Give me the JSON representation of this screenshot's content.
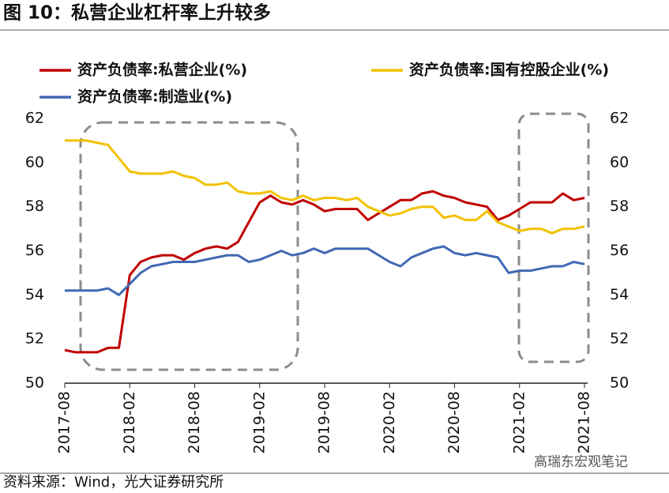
{
  "chart_data": {
    "type": "line",
    "title": "图 10：私营企业杠杆率上升较多",
    "source": "资料来源：Wind，光大证券研究所",
    "watermark": "高瑞东宏观笔记",
    "categories": [
      "2017-08",
      null,
      null,
      null,
      null,
      null,
      "2018-02",
      null,
      null,
      null,
      null,
      null,
      "2018-08",
      null,
      null,
      null,
      null,
      null,
      "2019-02",
      null,
      null,
      null,
      null,
      null,
      "2019-08",
      null,
      null,
      null,
      null,
      null,
      "2020-02",
      null,
      null,
      null,
      null,
      null,
      "2020-08",
      null,
      null,
      null,
      null,
      null,
      "2021-02",
      null,
      null,
      null,
      null,
      null,
      "2021-08"
    ],
    "series": [
      {
        "name": "资产负债率:私营企业(%)",
        "color": "#c00000",
        "values": [
          51.5,
          51.4,
          51.4,
          51.4,
          51.6,
          51.6,
          54.9,
          55.5,
          55.7,
          55.8,
          55.8,
          55.6,
          55.9,
          56.1,
          56.2,
          56.1,
          56.4,
          57.3,
          58.2,
          58.5,
          58.2,
          58.1,
          58.3,
          58.1,
          57.8,
          57.9,
          57.9,
          57.9,
          57.4,
          57.7,
          58.0,
          58.3,
          58.3,
          58.6,
          58.7,
          58.5,
          58.4,
          58.2,
          58.1,
          58.0,
          57.4,
          57.6,
          57.9,
          58.2,
          58.2,
          58.2,
          58.6,
          58.3,
          58.4
        ]
      },
      {
        "name": "资产负债率:国有控股企业(%)",
        "color": "#f2c200",
        "values": [
          61.0,
          61.0,
          61.0,
          60.9,
          60.8,
          60.2,
          59.6,
          59.5,
          59.5,
          59.5,
          59.6,
          59.4,
          59.3,
          59.0,
          59.0,
          59.1,
          58.7,
          58.6,
          58.6,
          58.7,
          58.4,
          58.3,
          58.5,
          58.3,
          58.4,
          58.4,
          58.3,
          58.4,
          58.0,
          57.8,
          57.6,
          57.7,
          57.9,
          58.0,
          58.0,
          57.5,
          57.6,
          57.4,
          57.4,
          57.8,
          57.3,
          57.1,
          56.9,
          57.0,
          57.0,
          56.8,
          57.0,
          57.0,
          57.1
        ]
      },
      {
        "name": "资产负债率:制造业(%)",
        "color": "#4169b4",
        "values": [
          54.2,
          54.2,
          54.2,
          54.2,
          54.3,
          54.0,
          54.5,
          55.0,
          55.3,
          55.4,
          55.5,
          55.5,
          55.5,
          55.6,
          55.7,
          55.8,
          55.8,
          55.5,
          55.6,
          55.8,
          56.0,
          55.8,
          55.9,
          56.1,
          55.9,
          56.1,
          56.1,
          56.1,
          56.1,
          55.8,
          55.5,
          55.3,
          55.7,
          55.9,
          56.1,
          56.2,
          55.9,
          55.8,
          55.9,
          55.8,
          55.7,
          55.0,
          55.1,
          55.1,
          55.2,
          55.3,
          55.3,
          55.5,
          55.4
        ]
      }
    ],
    "ylim": [
      50,
      62
    ],
    "yticks": [
      50,
      52,
      54,
      56,
      58,
      60,
      62
    ],
    "y2lim": [
      50,
      62
    ],
    "y2ticks": [
      50,
      52,
      54,
      56,
      58,
      60,
      62
    ],
    "grid": false
  }
}
